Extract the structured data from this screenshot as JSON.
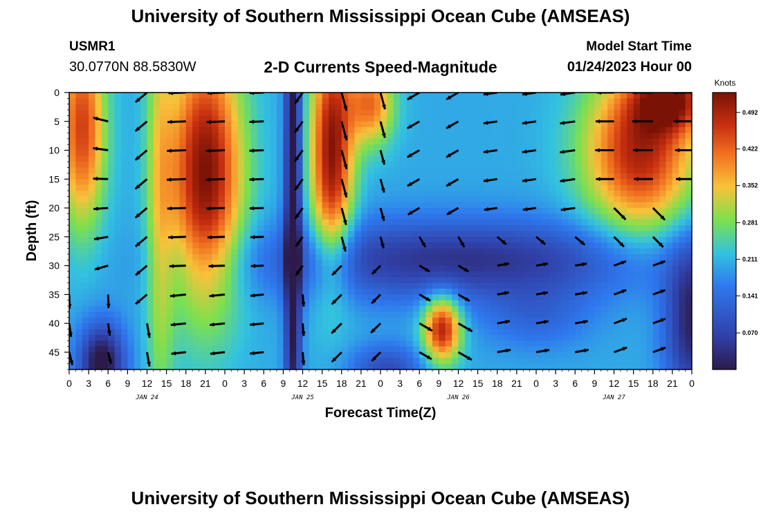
{
  "header": {
    "title": "University of Southern Mississippi Ocean Cube (AMSEAS)",
    "station_id": "USMR1",
    "coords": "30.0770N  88.5830W",
    "plot_title": "2-D Currents Speed-Magnitude",
    "start_label": "Model Start Time",
    "start_value": "01/24/2023 Hour 00"
  },
  "footer": {
    "title": "University of Southern Mississippi Ocean Cube (AMSEAS)"
  },
  "colors": {
    "low": "#2c1b4a",
    "mid": "#32c2e0",
    "green": "#7de04e",
    "yellow": "#f9c23a",
    "high": "#7a1206"
  },
  "chart_data": {
    "type": "heatmap",
    "title": "2-D Currents Speed-Magnitude",
    "xlabel": "Forecast Time(Z)",
    "ylabel": "Depth (ft)",
    "x_range_hours": [
      0,
      96
    ],
    "y_range_ft": [
      0,
      48
    ],
    "x_tick_labels": [
      "0",
      "3",
      "6",
      "9",
      "12",
      "15",
      "18",
      "21",
      "0",
      "3",
      "6",
      "9",
      "12",
      "15",
      "18",
      "21",
      "0",
      "3",
      "6",
      "9",
      "12",
      "15",
      "18",
      "21",
      "0",
      "3",
      "6",
      "9",
      "12",
      "15",
      "18",
      "21",
      "0"
    ],
    "day_labels": [
      "JAN 24",
      "JAN 25",
      "JAN 26",
      "JAN 27"
    ],
    "y_ticks": [
      0,
      5,
      10,
      15,
      20,
      25,
      30,
      35,
      40,
      45
    ],
    "colorbar": {
      "unit": "Knots",
      "ticks": [
        "0.492",
        "0.422",
        "0.352",
        "0.281",
        "0.211",
        "0.141",
        "0.070"
      ],
      "range": [
        0.0,
        0.53
      ]
    },
    "vector_times_hours": [
      0,
      6,
      12,
      18,
      24,
      30,
      36,
      42,
      48,
      54,
      60,
      66,
      72,
      78,
      84,
      90,
      96
    ],
    "vector_depths_ft": [
      0,
      5,
      10,
      15,
      20,
      25,
      30,
      35,
      40,
      45
    ]
  }
}
